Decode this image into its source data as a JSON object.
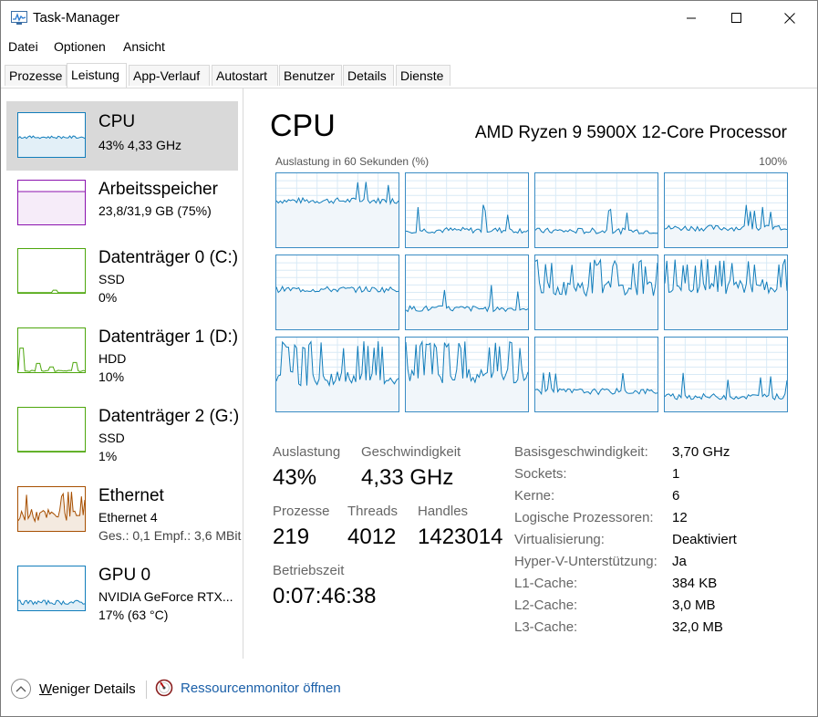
{
  "window": {
    "title": "Task-Manager"
  },
  "menu": {
    "items": [
      "Datei",
      "Optionen",
      "Ansicht"
    ]
  },
  "tabs": [
    "Prozesse",
    "Leistung",
    "App-Verlauf",
    "Autostart",
    "Benutzer",
    "Details",
    "Dienste"
  ],
  "active_tab": "Leistung",
  "sidebar": {
    "items": [
      {
        "name": "CPU",
        "line1": "43% 4,33 GHz",
        "line2": "",
        "color": "#117dbb",
        "selected": true
      },
      {
        "name": "Arbeitsspeicher",
        "line1": "23,8/31,9 GB (75%)",
        "line2": "",
        "color": "#8b12ae",
        "selected": false
      },
      {
        "name": "Datenträger 0 (C:)",
        "line1": "SSD",
        "line2": "0%",
        "color": "#4da60c",
        "selected": false
      },
      {
        "name": "Datenträger 1 (D:)",
        "line1": "HDD",
        "line2": "10%",
        "color": "#4da60c",
        "selected": false
      },
      {
        "name": "Datenträger 2 (G:)",
        "line1": "SSD",
        "line2": "1%",
        "color": "#4da60c",
        "selected": false
      },
      {
        "name": "Ethernet",
        "line1": "Ethernet 4",
        "line2": "Ges.: 0,1  Empf.: 3,6 MBit",
        "color": "#a74f01",
        "selected": false
      },
      {
        "name": "GPU 0",
        "line1": "NVIDIA GeForce RTX...",
        "line2": "17% (63 °C)",
        "color": "#117dbb",
        "selected": false
      }
    ]
  },
  "main": {
    "title": "CPU",
    "model": "AMD Ryzen 9 5900X 12-Core Processor",
    "util_label": "Auslastung in 60 Sekunden (%)",
    "util_max": "100%",
    "stats": [
      {
        "label": "Auslastung",
        "value": "43%"
      },
      {
        "label": "Geschwindigkeit",
        "value": "4,33 GHz"
      },
      {
        "label": "Prozesse",
        "value": "219"
      },
      {
        "label": "Threads",
        "value": "4012"
      },
      {
        "label": "Handles",
        "value": "1423014"
      },
      {
        "label": "Betriebszeit",
        "value": "0:07:46:38"
      }
    ],
    "info": [
      {
        "label": "Basisgeschwindigkeit:",
        "value": "3,70 GHz"
      },
      {
        "label": "Sockets:",
        "value": "1"
      },
      {
        "label": "Kerne:",
        "value": "6"
      },
      {
        "label": "Logische Prozessoren:",
        "value": "12"
      },
      {
        "label": "Virtualisierung:",
        "value": "Deaktiviert"
      },
      {
        "label": "Hyper-V-Unterstützung:",
        "value": "Ja"
      },
      {
        "label": "L1-Cache:",
        "value": "384 KB"
      },
      {
        "label": "L2-Cache:",
        "value": "3,0 MB"
      },
      {
        "label": "L3-Cache:",
        "value": "32,0 MB"
      }
    ]
  },
  "footer": {
    "fewer_details": "Weniger Details",
    "resource_monitor": "Ressourcenmonitor öffnen"
  },
  "colors": {
    "cpu": "#117dbb",
    "cpu_fill": "#f1f6fa",
    "memory": "#8b12ae",
    "disk": "#4da60c",
    "ethernet": "#a74f01"
  },
  "chart_data": {
    "type": "line",
    "x_range_seconds": 60,
    "y_range_percent": [
      0,
      100
    ],
    "cores_level_percent": [
      63,
      23,
      22,
      26,
      54,
      28,
      65,
      68,
      55,
      58,
      27,
      20
    ]
  }
}
